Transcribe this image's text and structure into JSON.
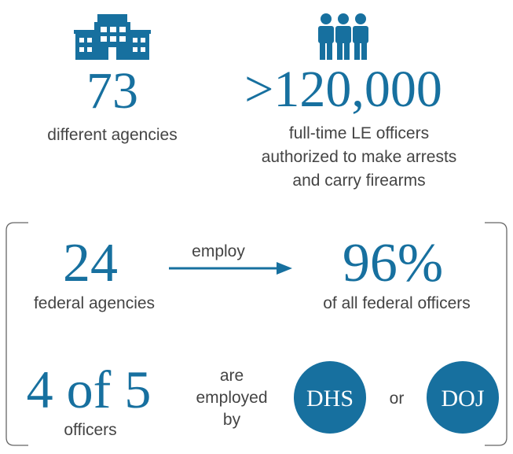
{
  "top": {
    "agencies": {
      "number": "73",
      "label": "different agencies"
    },
    "officers": {
      "number": ">120,000",
      "label": [
        "full-time LE officers",
        "authorized to make arrests",
        "and carry firearms"
      ]
    }
  },
  "box": {
    "federal": {
      "number": "24",
      "label": "federal agencies"
    },
    "verb": "employ",
    "share": {
      "number": "96%",
      "label": "of all federal officers"
    },
    "ratio": {
      "number": "4 of 5",
      "label": "officers"
    },
    "employed_by": [
      "are",
      "employed",
      "by"
    ],
    "dept1": "DHS",
    "or": "or",
    "dept2": "DOJ"
  }
}
